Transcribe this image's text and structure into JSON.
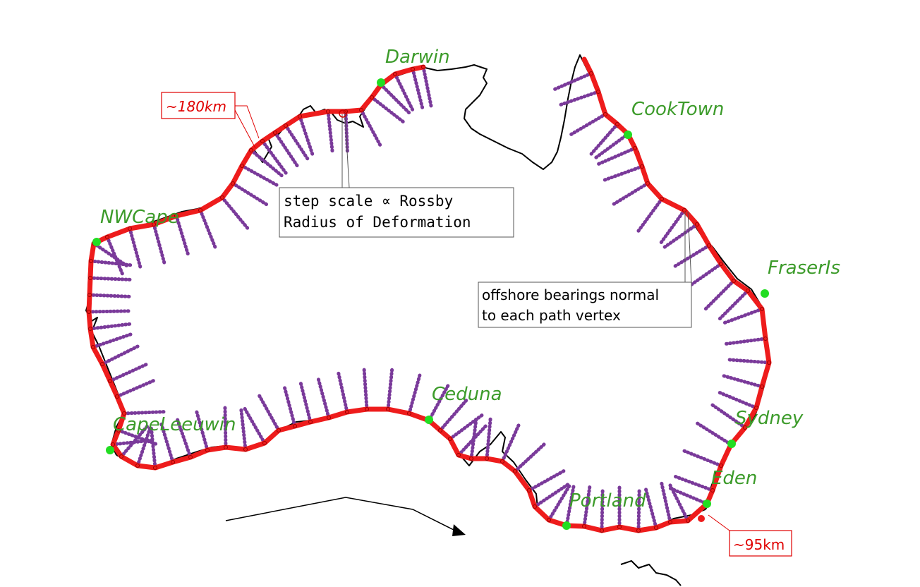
{
  "places": [
    {
      "name": "Darwin"
    },
    {
      "name": "CookTown"
    },
    {
      "name": "NWCape"
    },
    {
      "name": "FraserIs"
    },
    {
      "name": "Sydney"
    },
    {
      "name": "Eden"
    },
    {
      "name": "Portland"
    },
    {
      "name": "Ceduna"
    },
    {
      "name": "CapeLeeuwin"
    }
  ],
  "annotations": {
    "rossby_line1": "step scale ∝ Rossby",
    "rossby_line2": "Radius of Deformation",
    "bearing_line1": "offshore bearings normal",
    "bearing_line2": "to each path vertex",
    "dist_north": "~180km",
    "dist_south": "~95km"
  },
  "colors": {
    "path": "#ee1c1c",
    "transect": "#7a3a9a",
    "place_marker": "#22dd22",
    "place_label": "#3c9b2a",
    "coastline": "#000000",
    "distance_box": "#e00000"
  }
}
